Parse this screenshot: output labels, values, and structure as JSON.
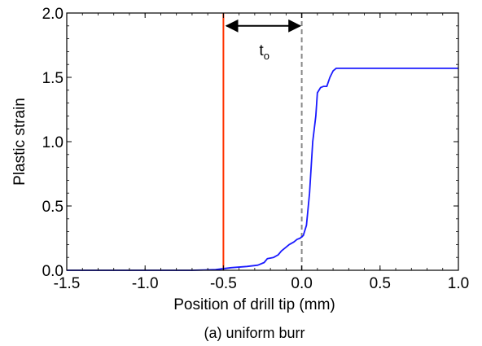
{
  "chart_data": {
    "type": "line",
    "title": "",
    "xlabel": "Position of drill tip (mm)",
    "ylabel": "Plastic strain",
    "caption": "(a) uniform burr",
    "xlim": [
      -1.5,
      1.0
    ],
    "ylim": [
      0.0,
      2.0
    ],
    "x_ticks": [
      -1.5,
      -1.0,
      -0.5,
      0.0,
      0.5,
      1.0
    ],
    "x_tick_labels": [
      "-1.5",
      "-1.0",
      "-0.5",
      "0.0",
      "0.5",
      "1.0"
    ],
    "y_ticks": [
      0.0,
      0.5,
      1.0,
      1.5,
      2.0
    ],
    "y_tick_labels": [
      "0.0",
      "0.5",
      "1.0",
      "1.5",
      "2.0"
    ],
    "grid": false,
    "series": [
      {
        "color": "#1a1aff",
        "x": [
          -1.5,
          -0.7,
          -0.55,
          -0.45,
          -0.35,
          -0.28,
          -0.24,
          -0.22,
          -0.18,
          -0.15,
          -0.13,
          -0.1,
          -0.08,
          -0.05,
          -0.03,
          -0.01,
          0.01,
          0.03,
          0.05,
          0.07,
          0.09,
          0.1,
          0.12,
          0.14,
          0.16,
          0.18,
          0.2,
          0.22,
          0.25,
          1.0
        ],
        "y": [
          0.0,
          0.0,
          0.005,
          0.02,
          0.03,
          0.04,
          0.06,
          0.09,
          0.1,
          0.12,
          0.15,
          0.18,
          0.2,
          0.22,
          0.24,
          0.25,
          0.27,
          0.35,
          0.6,
          1.0,
          1.2,
          1.38,
          1.42,
          1.43,
          1.43,
          1.5,
          1.55,
          1.57,
          1.57,
          1.57
        ]
      }
    ],
    "vertical_lines": [
      {
        "x": -0.5,
        "color": "#ff3300",
        "style": "solid"
      },
      {
        "x": 0.0,
        "color": "#888888",
        "style": "dashed"
      }
    ],
    "annotation": {
      "text": "t",
      "subscript": "o",
      "x_from": -0.48,
      "x_to": 0.0,
      "y": 1.9
    }
  }
}
